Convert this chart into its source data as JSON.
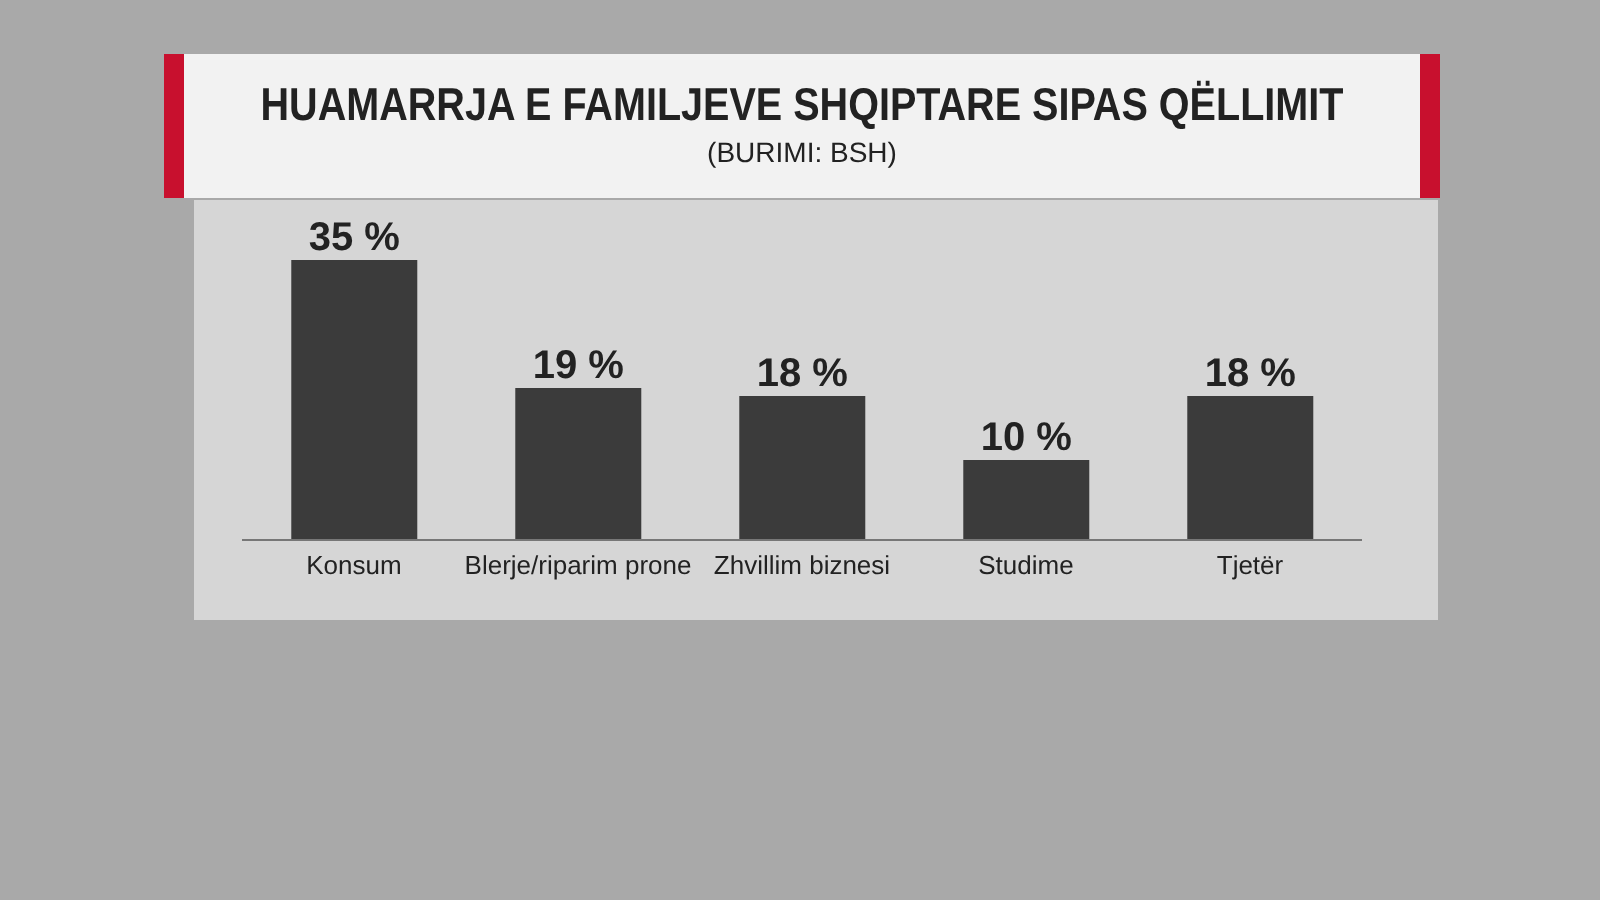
{
  "chart_data": {
    "type": "bar",
    "title": "HUAMARRJA E FAMILJEVE SHQIPTARE SIPAS QËLLIMIT",
    "subtitle": "(BURIMI: BSH)",
    "categories": [
      "Konsum",
      "Blerje/riparim prone",
      "Zhvillim biznesi",
      "Studime",
      "Tjetër"
    ],
    "values": [
      35,
      19,
      18,
      10,
      18
    ],
    "value_labels": [
      "35 %",
      "19 %",
      "18 %",
      "10 %",
      "18 %"
    ],
    "color": "#3b3b3b"
  }
}
